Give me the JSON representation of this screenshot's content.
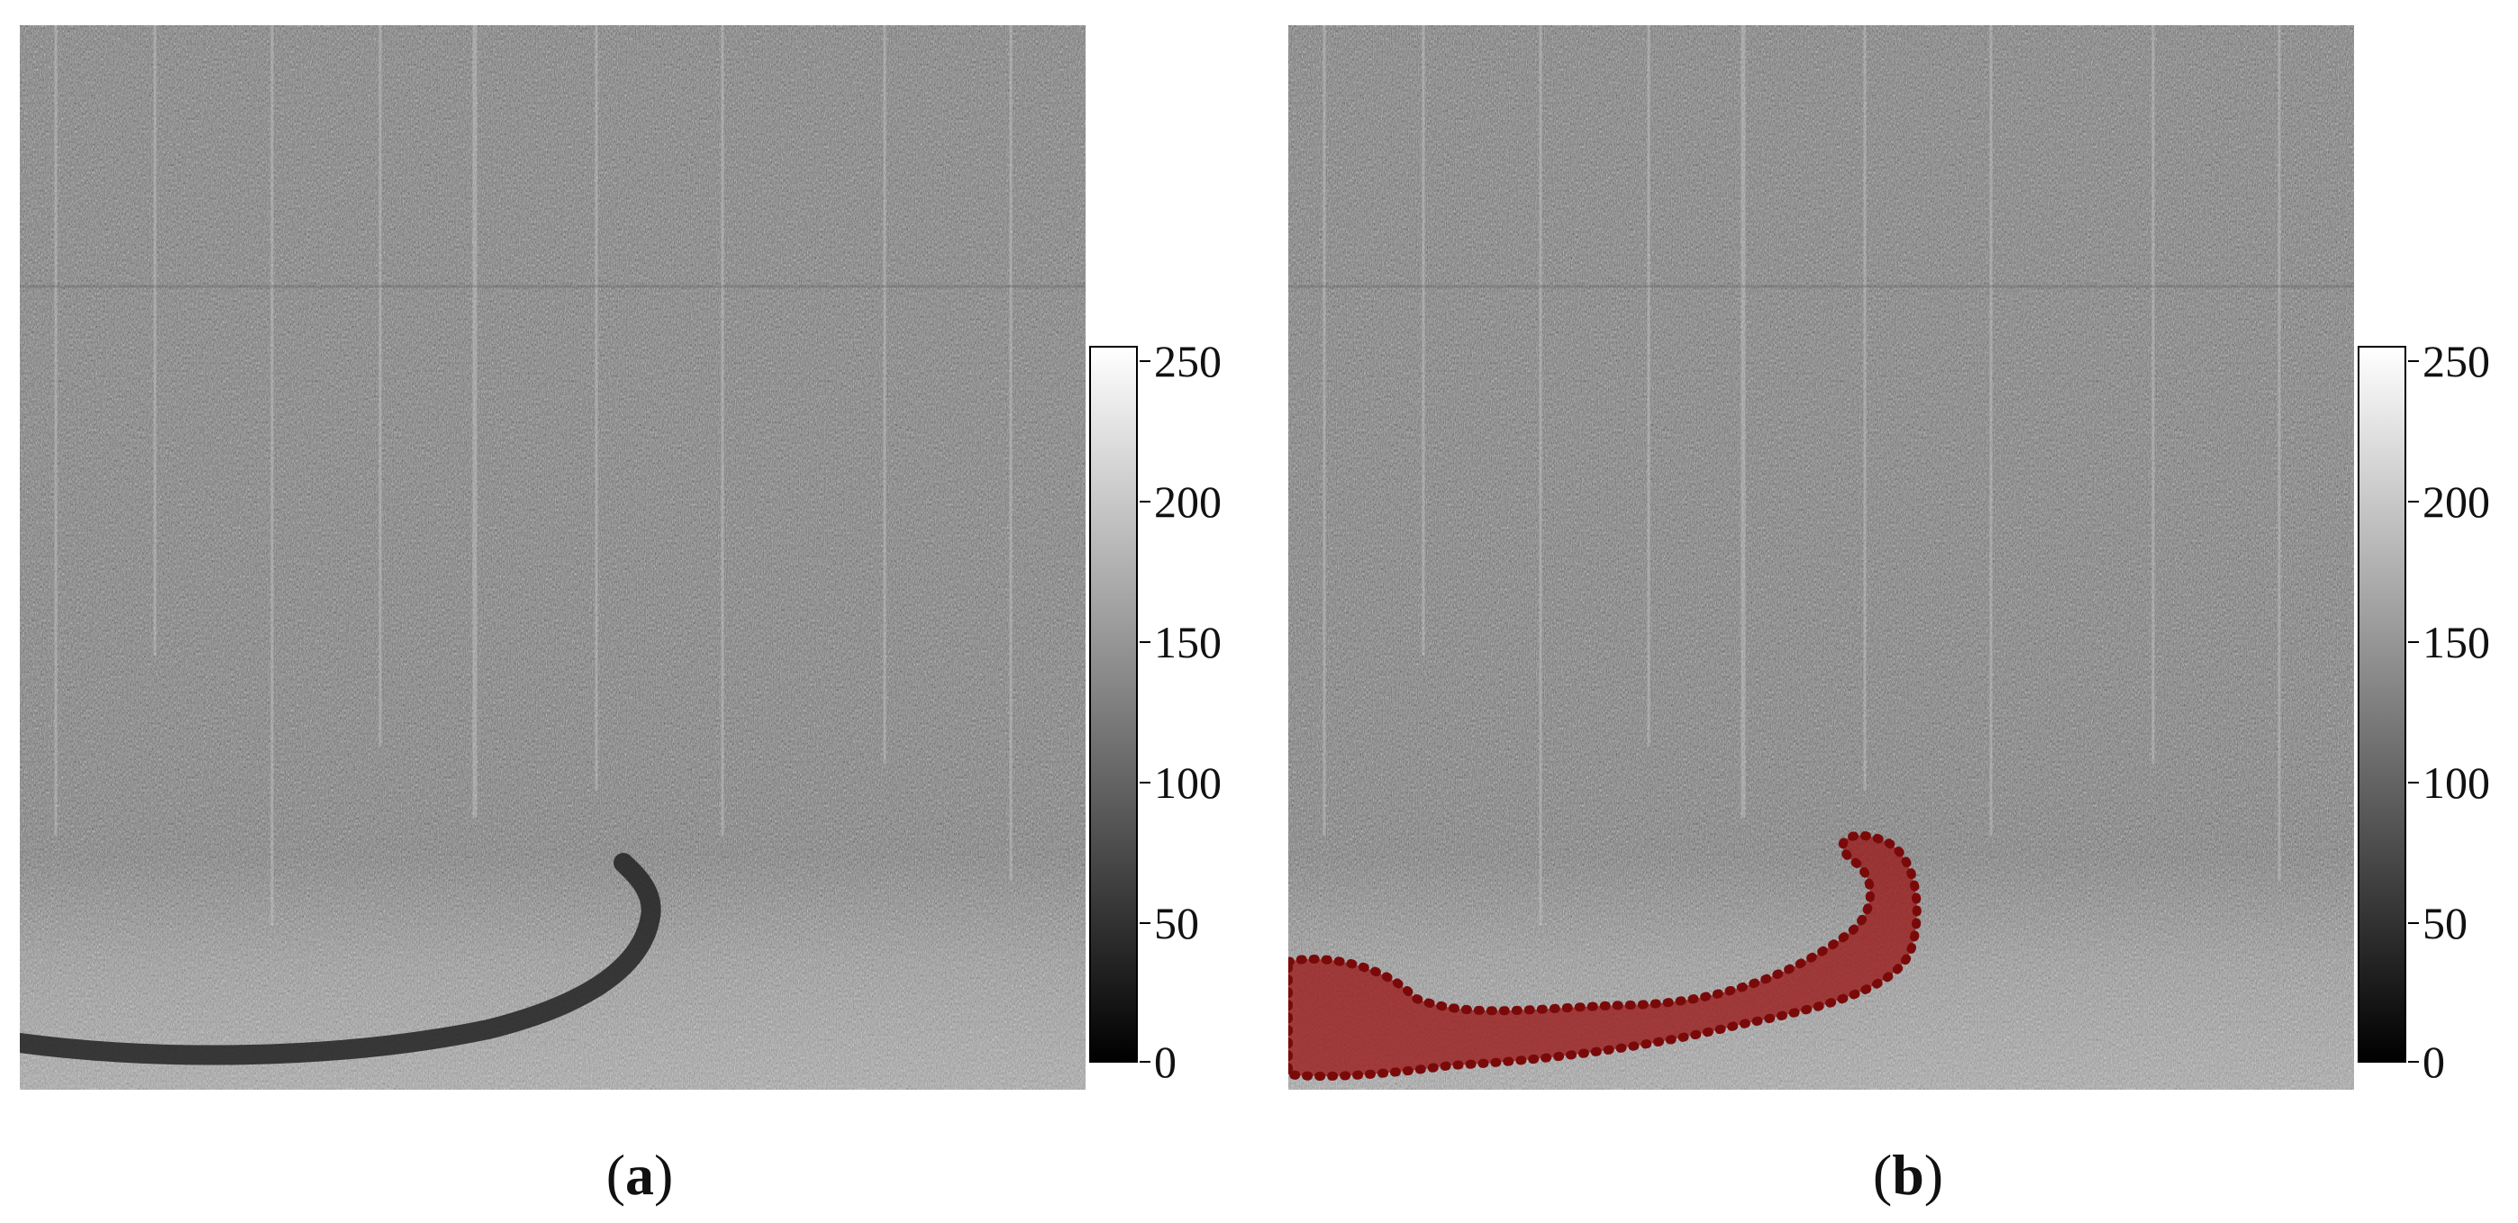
{
  "figure": {
    "panels": [
      {
        "id": "a",
        "caption_open": "(",
        "caption_letter": "a",
        "caption_close": ")",
        "has_overlay": false
      },
      {
        "id": "b",
        "caption_open": "(",
        "caption_letter": "b",
        "caption_close": ")",
        "has_overlay": true
      }
    ],
    "colorbar": {
      "range": [
        0,
        255
      ],
      "ticks": [
        "250",
        "200",
        "150",
        "100",
        "50",
        "0"
      ],
      "tick_values": [
        250,
        200,
        150,
        100,
        50,
        0
      ]
    },
    "colors": {
      "overlay": "#9b1a1a",
      "overlay_edge": "#7a0a0a",
      "image_base": "#7d7d7d"
    }
  }
}
